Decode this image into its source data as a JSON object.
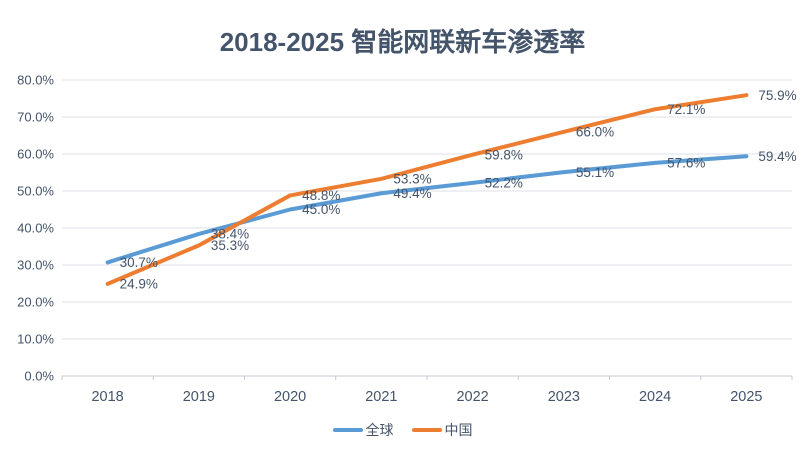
{
  "chart_data": {
    "type": "line",
    "title": "2018-2025 智能网联新车渗透率",
    "categories": [
      "2018",
      "2019",
      "2020",
      "2021",
      "2022",
      "2023",
      "2024",
      "2025"
    ],
    "series": [
      {
        "key": "global",
        "name": "全球",
        "color": "#5B9BD5",
        "values": [
          30.7,
          38.4,
          45.0,
          49.4,
          52.2,
          55.1,
          57.6,
          59.4
        ]
      },
      {
        "key": "china",
        "name": "中国",
        "color": "#ED7D31",
        "values": [
          24.9,
          35.3,
          48.8,
          53.3,
          59.8,
          66.0,
          72.1,
          75.9
        ]
      }
    ],
    "ylim": [
      0,
      80
    ],
    "ytick_step": 10,
    "yticks": [
      "0.0%",
      "10.0%",
      "20.0%",
      "30.0%",
      "40.0%",
      "50.0%",
      "60.0%",
      "70.0%",
      "80.0%"
    ],
    "grid": true,
    "data_labels": true,
    "data_label_suffix": "%",
    "legend_position": "bottom"
  },
  "colors": {
    "background": "#FFFFFF",
    "title_text": "#44546A",
    "axis_text": "#44546A",
    "data_label_text": "#44546A",
    "gridline": "#DDE2E9",
    "axis_line": "#C3C9D2"
  }
}
